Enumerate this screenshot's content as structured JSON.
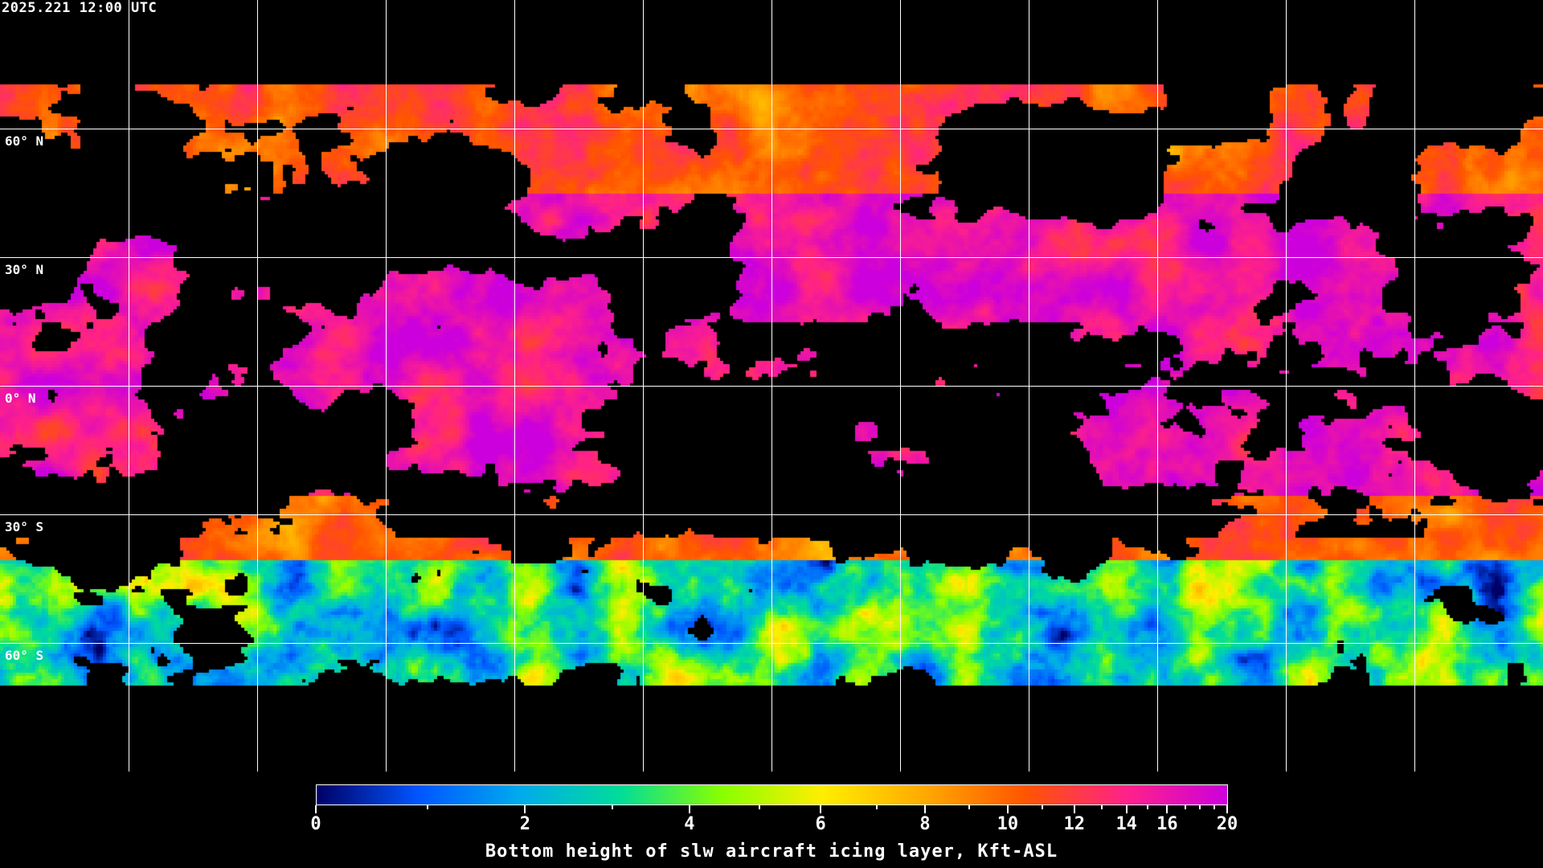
{
  "timestamp": "2025.221 12:00 UTC",
  "map": {
    "projection": "equirectangular",
    "lat_labels": [
      "60° N",
      "30° N",
      "0° N",
      "30° S",
      "60° S"
    ],
    "gridlines": "every 30 degrees",
    "coastline_color": "#ffffff"
  },
  "colorbar": {
    "title": "Bottom height of slw aircraft icing layer, Kft-ASL",
    "major_ticks": [
      "0",
      "2",
      "4",
      "6",
      "8",
      "10",
      "12",
      "14",
      "16",
      "20"
    ],
    "minor_ticks": [
      1,
      3,
      5,
      7,
      9,
      11,
      13,
      15,
      17,
      18,
      19
    ],
    "range": [
      0,
      20
    ],
    "colors": [
      "#000066",
      "#0055ff",
      "#00aaee",
      "#00dd99",
      "#88ff00",
      "#ffee00",
      "#ffaa00",
      "#ff5500",
      "#ff2288",
      "#cc00dd"
    ]
  }
}
